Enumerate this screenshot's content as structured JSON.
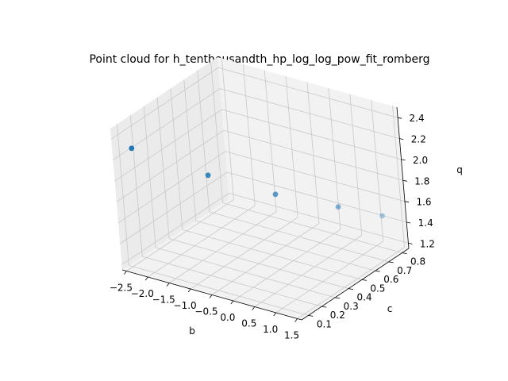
{
  "chart_data": {
    "type": "scatter",
    "dimensions": 3,
    "title": "Point cloud for h_tenthousandth_hp_log_log_pow_fit_romberg",
    "xlabel": "b",
    "ylabel": "c",
    "zlabel": "q",
    "x_ticks": [
      "−2.5",
      "−2.0",
      "−1.5",
      "−1.0",
      "−0.5",
      "0.0",
      "0.5",
      "1.0",
      "1.5"
    ],
    "y_ticks": [
      "0.1",
      "0.2",
      "0.3",
      "0.4",
      "0.5",
      "0.6",
      "0.7",
      "0.8"
    ],
    "z_ticks": [
      "1.2",
      "1.4",
      "1.6",
      "1.8",
      "2.0",
      "2.2",
      "2.4"
    ],
    "xlim": [
      -2.6,
      1.6
    ],
    "ylim": [
      0.05,
      0.85
    ],
    "zlim": [
      1.15,
      2.5
    ],
    "grid": true,
    "marker_color": "#1f77b4",
    "points": [
      {
        "x": -2.3,
        "y": 0.1,
        "z": 2.303
      },
      {
        "x": -1.2,
        "y": 0.3,
        "z": 2.0
      },
      {
        "x": -0.3,
        "y": 0.5,
        "z": 1.75
      },
      {
        "x": 0.5,
        "y": 0.7,
        "z": 1.55
      },
      {
        "x": 1.2,
        "y": 0.8,
        "z": 1.46
      }
    ]
  }
}
